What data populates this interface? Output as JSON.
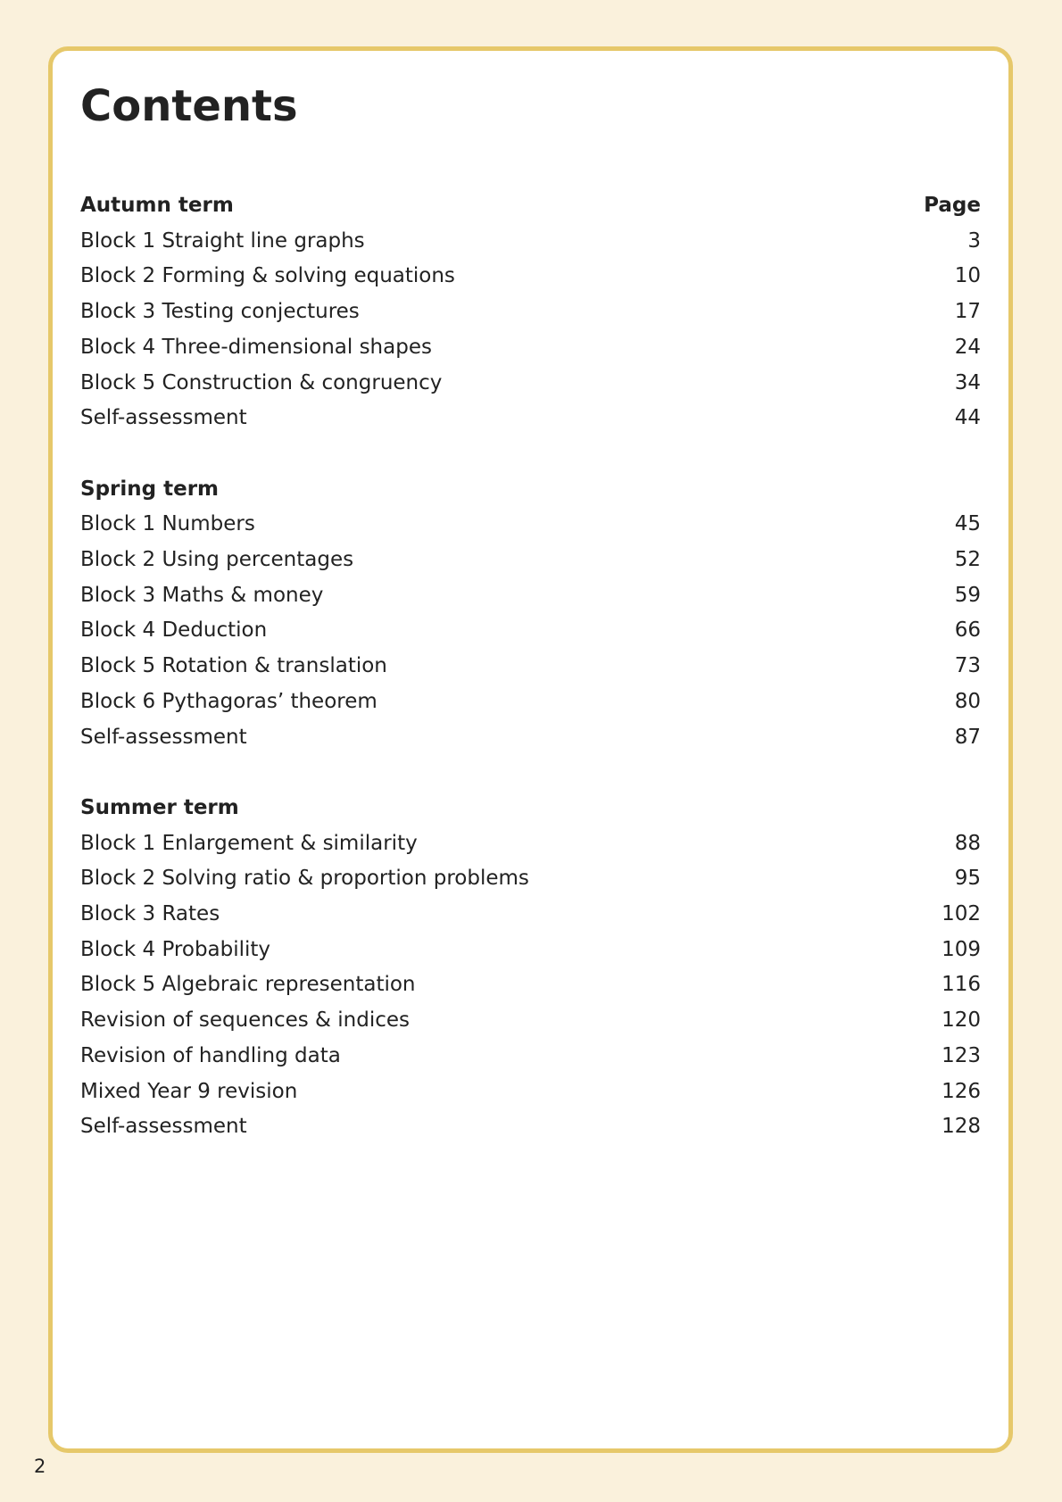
{
  "title": "Contents",
  "page_header": "Page",
  "sections": [
    {
      "heading": "Autumn term",
      "entries": [
        {
          "title": "Block 1 Straight line graphs",
          "page": 3
        },
        {
          "title": "Block 2 Forming & solving equations",
          "page": 10
        },
        {
          "title": "Block 3 Testing conjectures",
          "page": 17
        },
        {
          "title": "Block 4 Three-dimensional shapes",
          "page": 24
        },
        {
          "title": "Block 5 Construction & congruency",
          "page": 34
        },
        {
          "title": "Self-assessment",
          "page": 44
        }
      ]
    },
    {
      "heading": "Spring term",
      "entries": [
        {
          "title": "Block 1 Numbers",
          "page": 45
        },
        {
          "title": "Block 2 Using percentages",
          "page": 52
        },
        {
          "title": "Block 3 Maths & money",
          "page": 59
        },
        {
          "title": "Block 4 Deduction",
          "page": 66
        },
        {
          "title": "Block 5 Rotation & translation",
          "page": 73
        },
        {
          "title": "Block 6 Pythagoras’ theorem",
          "page": 80
        },
        {
          "title": "Self-assessment",
          "page": 87
        }
      ]
    },
    {
      "heading": "Summer term",
      "entries": [
        {
          "title": "Block 1 Enlargement & similarity",
          "page": 88
        },
        {
          "title": "Block 2 Solving ratio & proportion problems",
          "page": 95
        },
        {
          "title": "Block 3 Rates",
          "page": 102
        },
        {
          "title": "Block 4 Probability",
          "page": 109
        },
        {
          "title": "Block 5 Algebraic representation",
          "page": 116
        },
        {
          "title": "Revision of sequences & indices",
          "page": 120
        },
        {
          "title": "Revision of handling data",
          "page": 123
        },
        {
          "title": "Mixed Year 9 revision",
          "page": 126
        },
        {
          "title": "Self-assessment",
          "page": 128
        }
      ]
    }
  ],
  "page_number": 2
}
